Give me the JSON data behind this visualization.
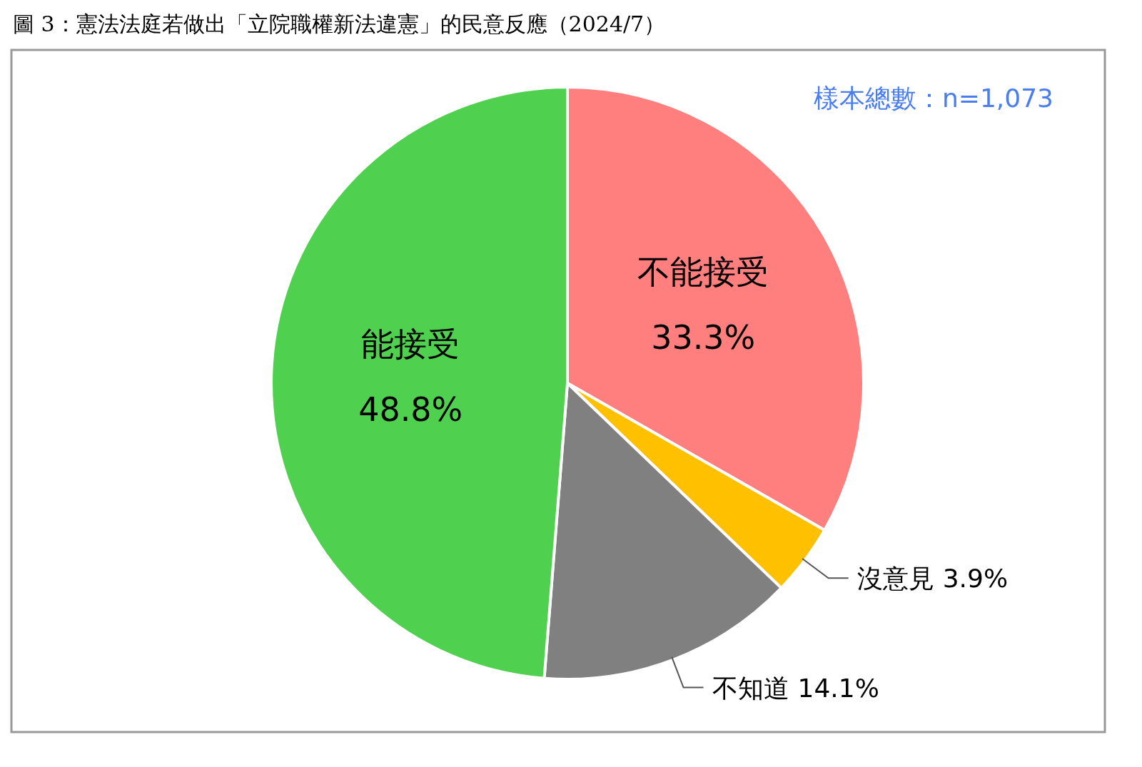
{
  "chart_data": {
    "type": "pie",
    "title": "圖 3：憲法法庭若做出「立院職權新法違憲」的民意反應（2024/7）",
    "annotations": [
      "樣本總數：n=1,073"
    ],
    "categories": [
      "不能接受",
      "沒意見",
      "不知道",
      "能接受"
    ],
    "values": [
      33.3,
      3.9,
      14.1,
      48.8
    ],
    "colors": [
      "#ff7f7f",
      "#ffc000",
      "#808080",
      "#4fd14f"
    ],
    "value_labels": [
      "33.3%",
      "3.9%",
      "14.1%",
      "48.8%"
    ]
  }
}
